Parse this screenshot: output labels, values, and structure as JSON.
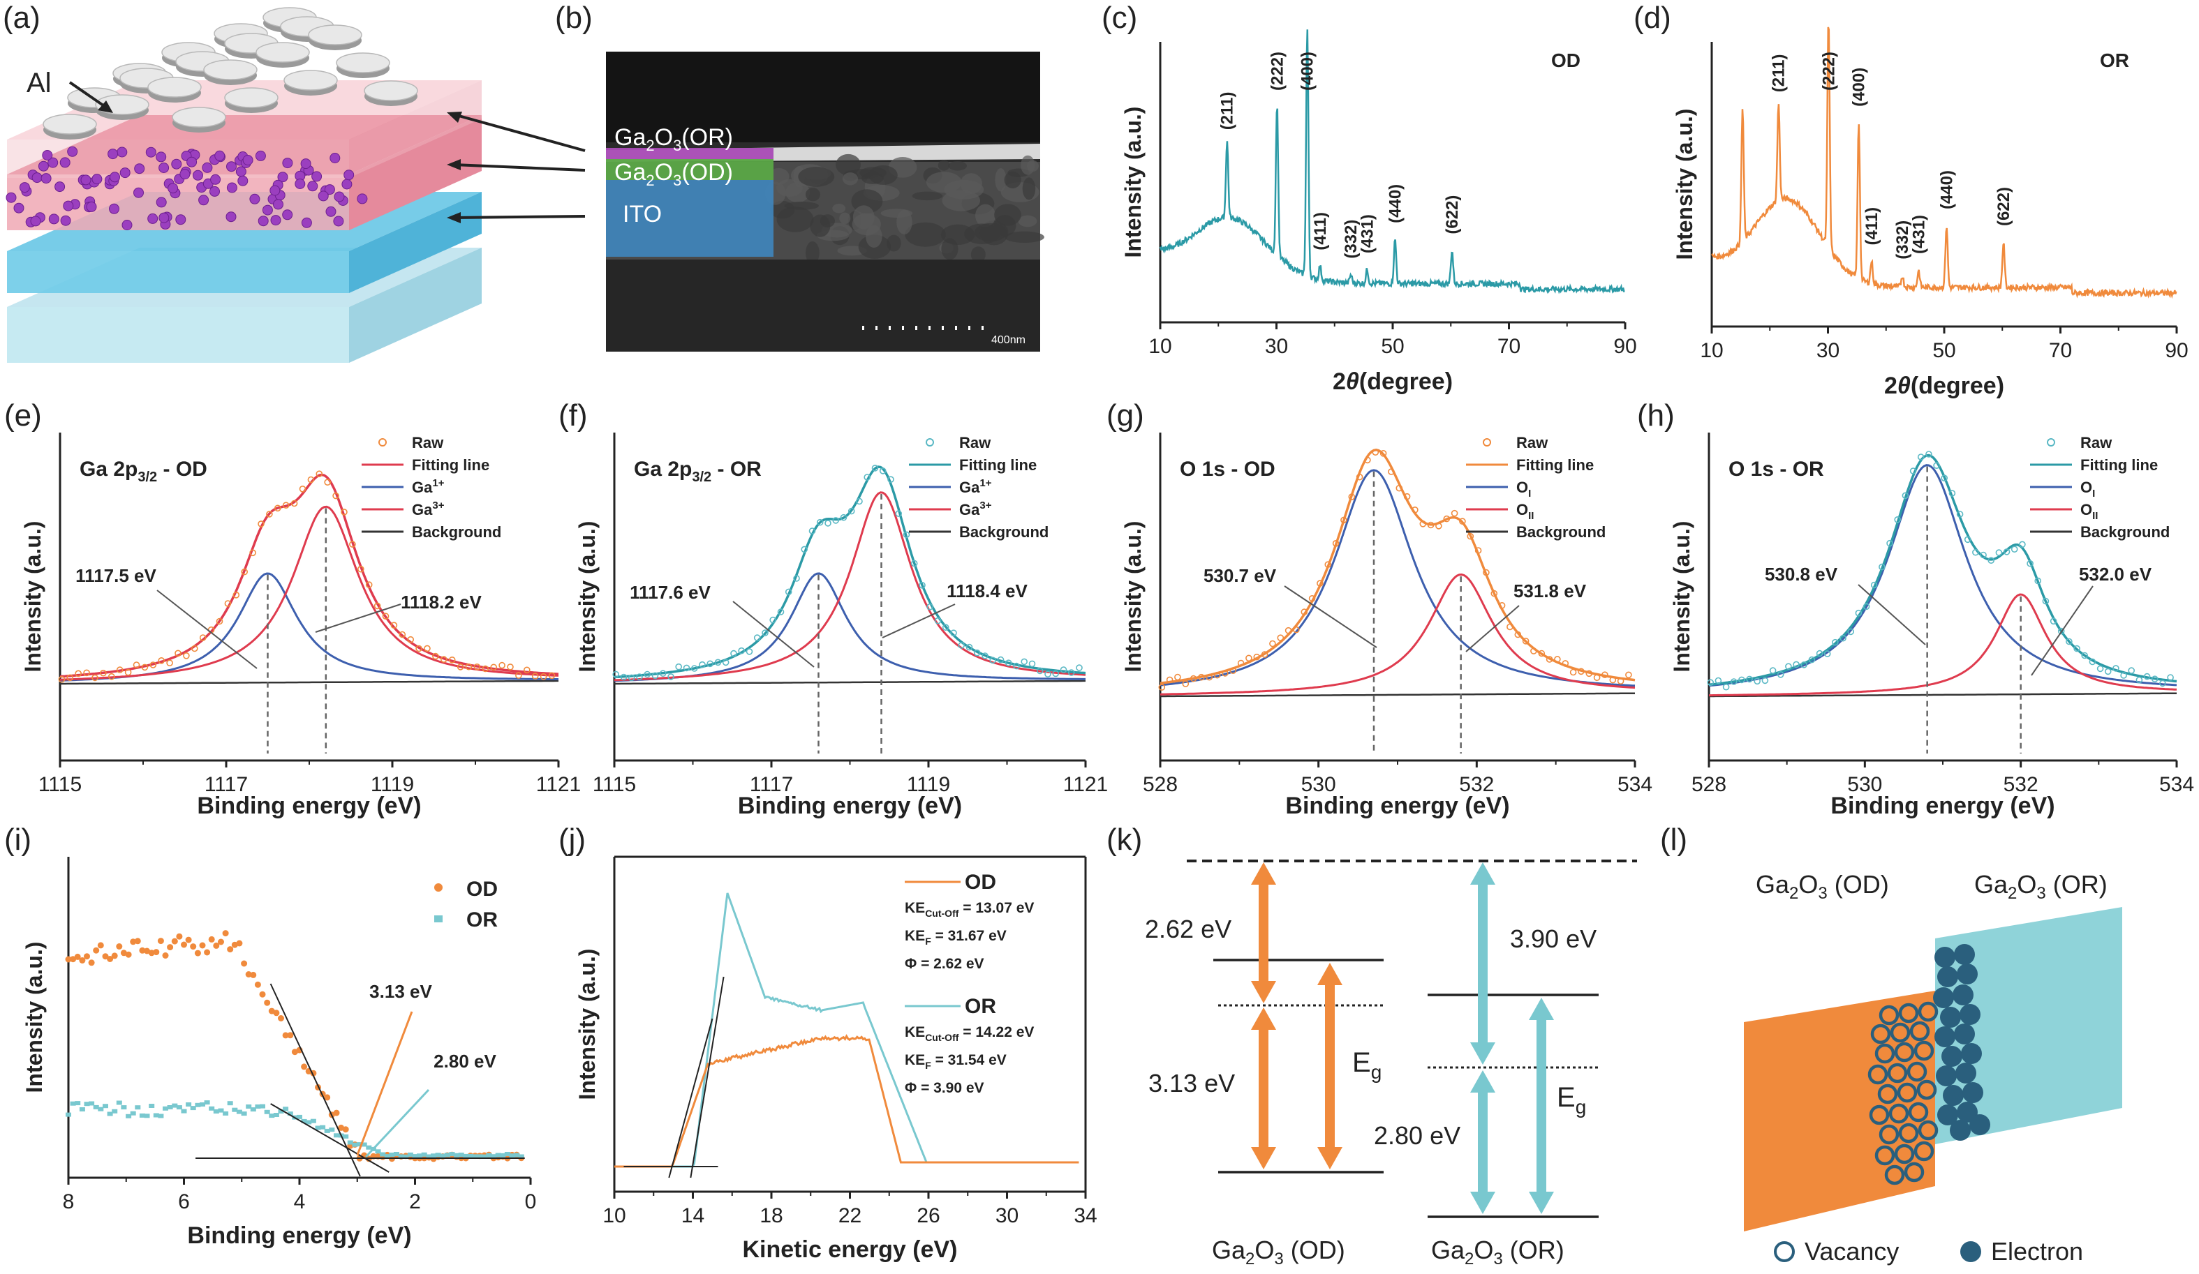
{
  "colors": {
    "od": "#f08a3c",
    "or": "#79c8cf",
    "teal": "#2b9aa6",
    "blue": "#3d5fae",
    "red": "#df3b4e",
    "black": "#333333",
    "dark": "#2a5f7d"
  },
  "panels": {
    "a": {
      "letter": "(a)",
      "al": "Al"
    },
    "b": {
      "letter": "(b)",
      "l1a": "Ga",
      "l1b": "2",
      "l1c": "O",
      "l1d": "3",
      "l1e": "(OR)",
      "l2e": "(OD)",
      "l3": "ITO",
      "scale": "400nm"
    },
    "c": {
      "letter": "(c)"
    },
    "d": {
      "letter": "(d)"
    },
    "e": {
      "letter": "(e)"
    },
    "f": {
      "letter": "(f)"
    },
    "g": {
      "letter": "(g)"
    },
    "h": {
      "letter": "(h)"
    },
    "i": {
      "letter": "(i)"
    },
    "j": {
      "letter": "(j)"
    },
    "k": {
      "letter": "(k)",
      "v262": "2.62 eV",
      "v313": "3.13 eV",
      "v390": "3.90 eV",
      "v280": "2.80 eV",
      "eg": "E",
      "egsub": "g",
      "lab_od": "Ga",
      "lab_od2": "2",
      "lab_od3": "O",
      "lab_od4": "3",
      "lab_od5": " (OD)",
      "lab_or5": " (OR)"
    },
    "l": {
      "letter": "(l)",
      "t_od": "Ga",
      "t2": "2",
      "t3": "O",
      "t4": "3",
      "t_od5": " (OD)",
      "t_or5": " (OR)",
      "vac": "Vacancy",
      "ele": "Electron"
    }
  },
  "chart_data": [
    {
      "id": "c",
      "type": "line",
      "tag": "OD",
      "xlabel": "2θ(degree)",
      "ylabel": "Intensity (a.u.)",
      "xlim": [
        10,
        90
      ],
      "xticks": [
        "10",
        "30",
        "50",
        "70",
        "90"
      ],
      "peaks": [
        {
          "x": 21.5,
          "h": 0.28,
          "label": "(211)"
        },
        {
          "x": 30.1,
          "h": 0.55,
          "label": "(222)"
        },
        {
          "x": 35.3,
          "h": 0.9,
          "label": "(400)"
        },
        {
          "x": 37.5,
          "h": 0.05,
          "label": "(411)"
        },
        {
          "x": 42.8,
          "h": 0.03,
          "label": "(332)"
        },
        {
          "x": 45.6,
          "h": 0.05,
          "label": "(431)"
        },
        {
          "x": 50.4,
          "h": 0.16,
          "label": "(440)"
        },
        {
          "x": 60.2,
          "h": 0.12,
          "label": "(622)"
        }
      ]
    },
    {
      "id": "d",
      "type": "line",
      "tag": "OR",
      "xlabel": "2θ(degree)",
      "ylabel": "Intensity (a.u.)",
      "xlim": [
        10,
        90
      ],
      "xticks": [
        "10",
        "30",
        "50",
        "70",
        "90"
      ],
      "peaks": [
        {
          "x": 15.3,
          "h": 0.48,
          "label": ""
        },
        {
          "x": 21.5,
          "h": 0.35,
          "label": "(211)"
        },
        {
          "x": 30.1,
          "h": 0.82,
          "label": "(222)"
        },
        {
          "x": 35.3,
          "h": 0.56,
          "label": "(400)"
        },
        {
          "x": 37.5,
          "h": 0.08,
          "label": "(411)"
        },
        {
          "x": 42.8,
          "h": 0.04,
          "label": "(332)"
        },
        {
          "x": 45.6,
          "h": 0.06,
          "label": "(431)"
        },
        {
          "x": 50.4,
          "h": 0.22,
          "label": "(440)"
        },
        {
          "x": 60.2,
          "h": 0.16,
          "label": "(622)"
        }
      ]
    },
    {
      "id": "e",
      "type": "line",
      "title": "Ga 2p",
      "titleSub": "3/2",
      "titleEnd": " - OD",
      "xlabel": "Binding energy (eV)",
      "ylabel": "Intensity (a.u.)",
      "xlim": [
        1115,
        1121
      ],
      "xticks": [
        "1115",
        "1117",
        "1119",
        "1121"
      ],
      "p1": {
        "c": 1117.5,
        "h": 0.46,
        "w": 0.55,
        "label": "1117.5 eV"
      },
      "p2": {
        "c": 1118.2,
        "h": 0.74,
        "w": 0.62,
        "label": "1118.2 eV"
      },
      "legend": [
        "Raw",
        "Fitting line",
        "Ga1+",
        "Ga3+",
        "Background"
      ]
    },
    {
      "id": "f",
      "type": "line",
      "title": "Ga 2p",
      "titleSub": "3/2",
      "titleEnd": " - OR",
      "xlabel": "Binding energy (eV)",
      "ylabel": "Intensity (a.u.)",
      "xlim": [
        1115,
        1121
      ],
      "xticks": [
        "1115",
        "1117",
        "1119",
        "1121"
      ],
      "p1": {
        "c": 1117.6,
        "h": 0.46,
        "w": 0.55,
        "label": "1117.6 eV"
      },
      "p2": {
        "c": 1118.4,
        "h": 0.8,
        "w": 0.6,
        "label": "1118.4 eV"
      },
      "legend": [
        "Raw",
        "Fitting line",
        "Ga1+",
        "Ga3+",
        "Background"
      ]
    },
    {
      "id": "g",
      "type": "line",
      "title": "O 1s - OD",
      "xlabel": "Binding energy (eV)",
      "ylabel": "Intensity (a.u.)",
      "xlim": [
        528,
        534
      ],
      "xticks": [
        "528",
        "530",
        "532",
        "534"
      ],
      "p1": {
        "c": 530.7,
        "h": 0.9,
        "w": 0.78,
        "label": "530.7 eV"
      },
      "p2": {
        "c": 531.8,
        "h": 0.48,
        "w": 0.62,
        "label": "531.8 eV"
      },
      "legend": [
        "Raw",
        "Fitting line",
        "OI",
        "OII",
        "Background"
      ]
    },
    {
      "id": "h",
      "type": "line",
      "title": "O 1s - OR",
      "xlabel": "Binding energy (eV)",
      "ylabel": "Intensity (a.u.)",
      "xlim": [
        528,
        534
      ],
      "xticks": [
        "528",
        "530",
        "532",
        "534"
      ],
      "p1": {
        "c": 530.8,
        "h": 0.92,
        "w": 0.78,
        "label": "530.8 eV"
      },
      "p2": {
        "c": 532.0,
        "h": 0.4,
        "w": 0.5,
        "label": "532.0 eV"
      },
      "legend": [
        "Raw",
        "Fitting line",
        "OI",
        "OII",
        "Background"
      ]
    },
    {
      "id": "i",
      "type": "scatter",
      "xlabel": "Binding energy (eV)",
      "ylabel": "Intensity (a.u.)",
      "xlim": [
        8,
        0
      ],
      "xticks": [
        "8",
        "6",
        "4",
        "2",
        "0"
      ],
      "legend": [
        "OD",
        "OR"
      ],
      "ann": [
        "3.13 eV",
        "2.80 eV"
      ]
    },
    {
      "id": "j",
      "type": "line",
      "xlabel": "Kinetic energy (eV)",
      "ylabel": "Intensity (a.u.)",
      "xlim": [
        10,
        35
      ],
      "xticks": [
        "10",
        "14",
        "18",
        "22",
        "26",
        "30",
        "34"
      ],
      "od": {
        "name": "OD",
        "ke": "KE",
        "keSub": "Cut-Off",
        "keVal": " = 13.07 eV",
        "kf": "KE",
        "kfSub": "F",
        "kfVal": " = 31.67 eV",
        "phi": "Φ = 2.62 eV"
      },
      "or": {
        "name": "OR",
        "ke": "KE",
        "keSub": "Cut-Off",
        "keVal": " = 14.22 eV",
        "kf": "KE",
        "kfSub": "F",
        "kfVal": " = 31.54 eV",
        "phi": "Φ = 3.90 eV"
      }
    }
  ]
}
